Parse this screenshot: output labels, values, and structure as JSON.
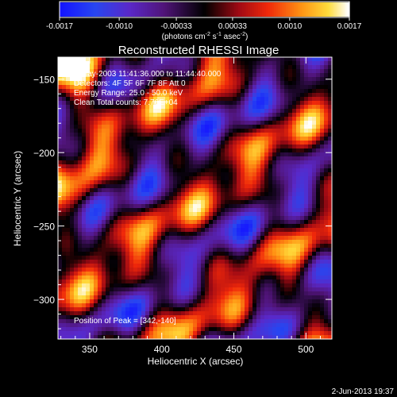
{
  "colorbar": {
    "ticks": [
      "-0.0017",
      "-0.0010",
      "-0.00033",
      "0.00033",
      "0.0010",
      "0.0017"
    ],
    "units_prefix": "(photons cm",
    "units_exp1": "-2",
    "units_mid1": " s",
    "units_exp2": "-1",
    "units_mid2": " asec",
    "units_exp3": "-2",
    "units_suffix": ")"
  },
  "chart_data": {
    "type": "heatmap",
    "title": "Reconstructed RHESSI Image",
    "xlabel": "Heliocentric X (arcsec)",
    "ylabel": "Heliocentric Y (arcsec)",
    "xlim": [
      328,
      518
    ],
    "ylim": [
      -327,
      -135
    ],
    "x_ticks": [
      350,
      400,
      450,
      500
    ],
    "y_ticks": [
      -150,
      -200,
      -250,
      -300
    ],
    "color_range": [
      -0.0017,
      0.0017
    ],
    "colorbar_ticks": [
      -0.0017,
      -0.001,
      -0.00033,
      0.00033,
      0.001,
      0.0017
    ],
    "annotations": [
      "2-May-2003 11:41:36.000 to 11:44:40.000",
      "Detectors: 4F 5F 6F 7F 8F  Att 0",
      "Energy Range: 25.0 - 50.0 keV",
      "Clean     Total counts: 7.76E+04"
    ],
    "peak_label": "Position of Peak = [342,-140]",
    "peak": [
      342,
      -140
    ]
  },
  "footer": {
    "date": "2-Jun-2013 19:37"
  }
}
